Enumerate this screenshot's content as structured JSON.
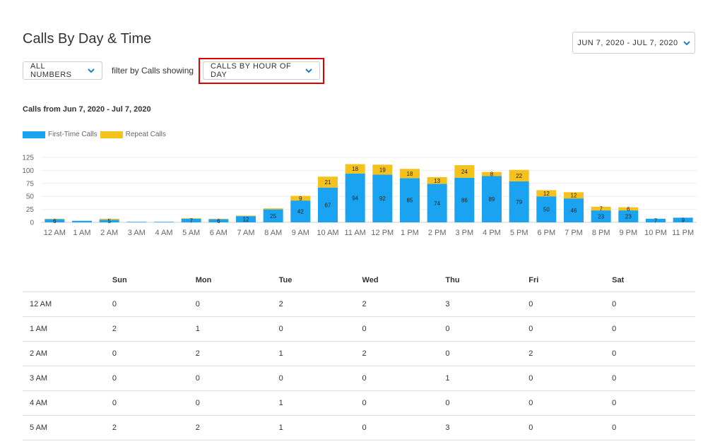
{
  "header": {
    "title": "Calls By Day & Time",
    "date_range": "JUN 7, 2020 - JUL 7, 2020"
  },
  "filters": {
    "numbers_label": "ALL NUMBERS",
    "filter_text": "filter by Calls showing",
    "view_label": "CALLS BY HOUR OF DAY"
  },
  "chart_subtitle": "Calls from Jun 7, 2020 - Jul 7, 2020",
  "colors": {
    "first_time": "#1aa3f0",
    "repeat": "#f5c21b",
    "highlight": "#e00000"
  },
  "chart_data": {
    "type": "bar",
    "stacked": true,
    "categories": [
      "12 AM",
      "1 AM",
      "2 AM",
      "3 AM",
      "4 AM",
      "5 AM",
      "6 AM",
      "7 AM",
      "8 AM",
      "9 AM",
      "10 AM",
      "11 AM",
      "12 PM",
      "1 PM",
      "2 PM",
      "3 PM",
      "4 PM",
      "5 PM",
      "6 PM",
      "7 PM",
      "8 PM",
      "9 PM",
      "10 PM",
      "11 PM"
    ],
    "series": [
      {
        "name": "First-Time Calls",
        "values": [
          6,
          3,
          5,
          1,
          1,
          7,
          6,
          12,
          25,
          42,
          67,
          94,
          92,
          85,
          74,
          86,
          89,
          79,
          50,
          46,
          23,
          23,
          7,
          9
        ],
        "labels": [
          "6",
          "",
          "5",
          "",
          "",
          "7",
          "6",
          "12",
          "25",
          "42",
          "67",
          "94",
          "92",
          "85",
          "74",
          "86",
          "89",
          "79",
          "50",
          "46",
          "23",
          "23",
          "7",
          "9"
        ]
      },
      {
        "name": "Repeat Calls",
        "values": [
          1,
          0,
          2,
          0,
          0,
          1,
          1,
          1,
          2,
          9,
          21,
          18,
          19,
          18,
          13,
          24,
          8,
          22,
          12,
          12,
          7,
          6,
          0,
          0
        ],
        "labels": [
          "",
          "",
          "",
          "",
          "",
          "",
          "",
          "",
          "",
          "9",
          "21",
          "18",
          "19",
          "18",
          "13",
          "24",
          "8",
          "22",
          "12",
          "12",
          "7",
          "6",
          "",
          ""
        ]
      }
    ],
    "yticks": [
      0,
      25,
      50,
      75,
      100,
      125
    ],
    "ylim": [
      0,
      125
    ],
    "grid": true,
    "legend_position": "top-left"
  },
  "table": {
    "columns": [
      "",
      "Sun",
      "Mon",
      "Tue",
      "Wed",
      "Thu",
      "Fri",
      "Sat"
    ],
    "rows": [
      [
        "12 AM",
        "0",
        "0",
        "2",
        "2",
        "3",
        "0",
        "0"
      ],
      [
        "1 AM",
        "2",
        "1",
        "0",
        "0",
        "0",
        "0",
        "0"
      ],
      [
        "2 AM",
        "0",
        "2",
        "1",
        "2",
        "0",
        "2",
        "0"
      ],
      [
        "3 AM",
        "0",
        "0",
        "0",
        "0",
        "1",
        "0",
        "0"
      ],
      [
        "4 AM",
        "0",
        "0",
        "1",
        "0",
        "0",
        "0",
        "0"
      ],
      [
        "5 AM",
        "2",
        "2",
        "1",
        "0",
        "3",
        "0",
        "0"
      ]
    ]
  }
}
